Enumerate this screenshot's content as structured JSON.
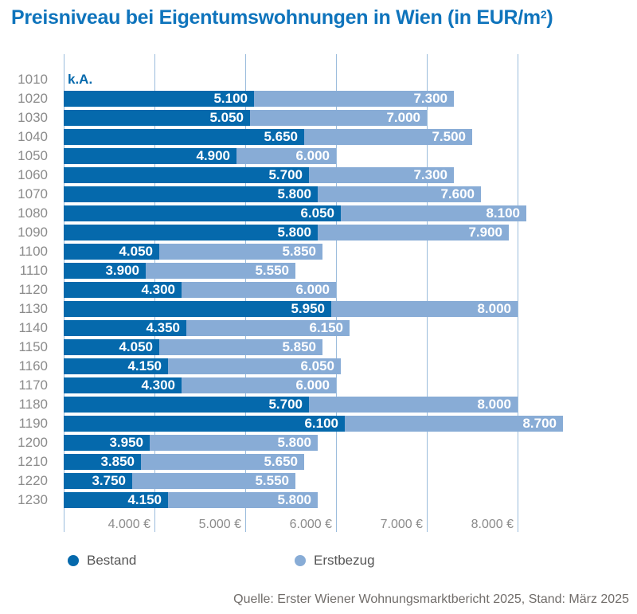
{
  "title": {
    "prefix": "Preisniveau bei Eigentumswohnungen in Wien (in EUR/m",
    "superscript": "2",
    "suffix": ")"
  },
  "source": "Quelle: Erster Wiener Wohnungsmarktbericht 2025, Stand: März 2025",
  "colors": {
    "bestand": "#0569ac",
    "erstbezug": "#88acd6",
    "gridline": "#9bbcdc",
    "title_text": "#0f74bc",
    "axis_text": "#8b8b8b",
    "legend_text": "#565656",
    "source_text": "#716d6a",
    "bar_value_text": "#ffffff"
  },
  "legend": {
    "items": [
      {
        "label": "Bestand",
        "color": "#0569ac"
      },
      {
        "label": "Erstbezug",
        "color": "#88acd6"
      }
    ]
  },
  "chart_data": {
    "type": "bar",
    "orientation": "horizontal",
    "title": "Preisniveau bei Eigentumswohnungen in Wien (in EUR/m²)",
    "categories": [
      "1010",
      "1020",
      "1030",
      "1040",
      "1050",
      "1060",
      "1070",
      "1080",
      "1090",
      "1100",
      "1110",
      "1120",
      "1130",
      "1140",
      "1150",
      "1160",
      "1170",
      "1180",
      "1190",
      "1200",
      "1210",
      "1220",
      "1230"
    ],
    "series": [
      {
        "name": "Bestand",
        "color": "#0569ac",
        "values": [
          null,
          5100,
          5050,
          5650,
          4900,
          5700,
          5800,
          6050,
          5800,
          4050,
          3900,
          4300,
          5950,
          4350,
          4050,
          4150,
          4300,
          5700,
          6100,
          3950,
          3850,
          3750,
          4150
        ]
      },
      {
        "name": "Erstbezug",
        "color": "#88acd6",
        "values": [
          null,
          7300,
          7000,
          7500,
          6000,
          7300,
          7600,
          8100,
          7900,
          5850,
          5550,
          6000,
          8000,
          6150,
          5850,
          6050,
          6000,
          8000,
          8700,
          5800,
          5650,
          5550,
          5800
        ]
      }
    ],
    "no_data_label": "k.A.",
    "no_data_category": "1010",
    "xlim": [
      3000,
      8500
    ],
    "gridline_values": [
      3000,
      4000,
      5000,
      6000,
      7000,
      8000
    ],
    "x_ticks": [
      {
        "value": 4000,
        "label": "4.000 €"
      },
      {
        "value": 5000,
        "label": "5.000 €"
      },
      {
        "value": 6000,
        "label": "6.000 €"
      },
      {
        "value": 7000,
        "label": "7.000 €"
      },
      {
        "value": 8000,
        "label": "8.000 €"
      }
    ],
    "grid": true,
    "legend_position": "bottom",
    "value_labels": "inside-right"
  }
}
